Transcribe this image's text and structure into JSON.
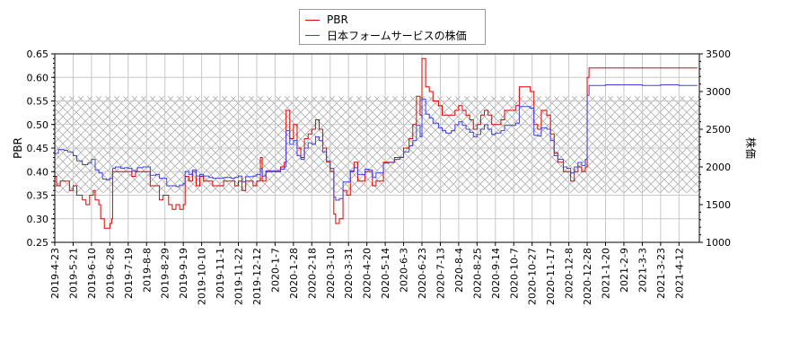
{
  "chart_data": {
    "type": "line",
    "title": "",
    "xlabel": "",
    "ylabel": "PBR",
    "ylabel_right": "株価",
    "ylim": [
      0.25,
      0.65
    ],
    "ylim_right": [
      1000,
      3500
    ],
    "yticks": [
      "0.25",
      "0.30",
      "0.35",
      "0.40",
      "0.45",
      "0.50",
      "0.55",
      "0.60",
      "0.65"
    ],
    "yticks_right": [
      "1000",
      "1500",
      "2000",
      "2500",
      "3000",
      "3500"
    ],
    "x_tick_labels": [
      "2019-4-23",
      "2019-5-21",
      "2019-6-10",
      "2019-6-28",
      "2019-7-19",
      "2019-8-8",
      "2019-8-29",
      "2019-9-19",
      "2019-10-10",
      "2019-11-1",
      "2019-11-22",
      "2019-12-12",
      "2020-1-7",
      "2020-1-28",
      "2020-2-18",
      "2020-3-10",
      "2020-3-31",
      "2020-4-20",
      "2020-5-14",
      "2020-6-3",
      "2020-6-23",
      "2020-7-13",
      "2020-8-4",
      "2020-8-25",
      "2020-9-14",
      "2020-10-7",
      "2020-10-27",
      "2020-11-17",
      "2020-12-8",
      "2020-12-28",
      "2021-1-20",
      "2021-2-9",
      "2021-3-3",
      "2021-3-23",
      "2021-4-12"
    ],
    "grid": true,
    "hatched_band_pbr": [
      0.355,
      0.56
    ],
    "legend_position": "top-center",
    "series": [
      {
        "name": "PBR",
        "color": "#e00000",
        "axis": "left",
        "points": [
          [
            0,
            0.39
          ],
          [
            0.1,
            0.37
          ],
          [
            0.3,
            0.38
          ],
          [
            0.6,
            0.38
          ],
          [
            0.8,
            0.36
          ],
          [
            1.0,
            0.37
          ],
          [
            1.2,
            0.35
          ],
          [
            1.5,
            0.34
          ],
          [
            1.7,
            0.33
          ],
          [
            1.9,
            0.35
          ],
          [
            2.1,
            0.36
          ],
          [
            2.2,
            0.34
          ],
          [
            2.4,
            0.33
          ],
          [
            2.5,
            0.3
          ],
          [
            2.7,
            0.28
          ],
          [
            2.9,
            0.28
          ],
          [
            3.0,
            0.29
          ],
          [
            3.1,
            0.3
          ],
          [
            3.15,
            0.4
          ],
          [
            3.3,
            0.4
          ],
          [
            3.5,
            0.4
          ],
          [
            3.8,
            0.4
          ],
          [
            4.0,
            0.4
          ],
          [
            4.2,
            0.39
          ],
          [
            4.4,
            0.4
          ],
          [
            4.8,
            0.4
          ],
          [
            5.0,
            0.4
          ],
          [
            5.2,
            0.37
          ],
          [
            5.5,
            0.37
          ],
          [
            5.7,
            0.34
          ],
          [
            5.9,
            0.35
          ],
          [
            6.2,
            0.33
          ],
          [
            6.4,
            0.32
          ],
          [
            6.6,
            0.33
          ],
          [
            6.8,
            0.32
          ],
          [
            7.0,
            0.33
          ],
          [
            7.1,
            0.39
          ],
          [
            7.3,
            0.38
          ],
          [
            7.5,
            0.4
          ],
          [
            7.7,
            0.37
          ],
          [
            7.9,
            0.39
          ],
          [
            8.1,
            0.38
          ],
          [
            8.4,
            0.38
          ],
          [
            8.6,
            0.37
          ],
          [
            9.0,
            0.37
          ],
          [
            9.2,
            0.38
          ],
          [
            9.6,
            0.38
          ],
          [
            9.8,
            0.37
          ],
          [
            10.0,
            0.38
          ],
          [
            10.2,
            0.36
          ],
          [
            10.4,
            0.38
          ],
          [
            10.6,
            0.38
          ],
          [
            10.8,
            0.37
          ],
          [
            11.0,
            0.38
          ],
          [
            11.2,
            0.43
          ],
          [
            11.3,
            0.38
          ],
          [
            11.5,
            0.4
          ],
          [
            11.8,
            0.4
          ],
          [
            12.0,
            0.4
          ],
          [
            12.3,
            0.41
          ],
          [
            12.5,
            0.42
          ],
          [
            12.6,
            0.53
          ],
          [
            12.8,
            0.47
          ],
          [
            13.0,
            0.5
          ],
          [
            13.2,
            0.45
          ],
          [
            13.4,
            0.43
          ],
          [
            13.6,
            0.47
          ],
          [
            13.8,
            0.48
          ],
          [
            14.0,
            0.49
          ],
          [
            14.2,
            0.51
          ],
          [
            14.4,
            0.49
          ],
          [
            14.6,
            0.45
          ],
          [
            14.8,
            0.42
          ],
          [
            15.0,
            0.4
          ],
          [
            15.2,
            0.31
          ],
          [
            15.3,
            0.29
          ],
          [
            15.5,
            0.3
          ],
          [
            15.7,
            0.36
          ],
          [
            15.9,
            0.35
          ],
          [
            16.1,
            0.4
          ],
          [
            16.3,
            0.42
          ],
          [
            16.5,
            0.38
          ],
          [
            16.7,
            0.38
          ],
          [
            16.9,
            0.4
          ],
          [
            17.1,
            0.4
          ],
          [
            17.3,
            0.37
          ],
          [
            17.5,
            0.38
          ],
          [
            17.7,
            0.38
          ],
          [
            17.9,
            0.42
          ],
          [
            18.2,
            0.42
          ],
          [
            18.5,
            0.43
          ],
          [
            18.8,
            0.43
          ],
          [
            19.0,
            0.45
          ],
          [
            19.3,
            0.47
          ],
          [
            19.5,
            0.5
          ],
          [
            19.7,
            0.56
          ],
          [
            19.9,
            0.52
          ],
          [
            20.0,
            0.64
          ],
          [
            20.2,
            0.58
          ],
          [
            20.4,
            0.57
          ],
          [
            20.6,
            0.55
          ],
          [
            20.9,
            0.54
          ],
          [
            21.1,
            0.52
          ],
          [
            21.3,
            0.52
          ],
          [
            21.6,
            0.52
          ],
          [
            21.8,
            0.53
          ],
          [
            22.0,
            0.54
          ],
          [
            22.2,
            0.53
          ],
          [
            22.4,
            0.52
          ],
          [
            22.6,
            0.51
          ],
          [
            22.8,
            0.49
          ],
          [
            23.0,
            0.5
          ],
          [
            23.2,
            0.52
          ],
          [
            23.4,
            0.53
          ],
          [
            23.6,
            0.52
          ],
          [
            23.8,
            0.5
          ],
          [
            24.0,
            0.5
          ],
          [
            24.3,
            0.51
          ],
          [
            24.5,
            0.53
          ],
          [
            24.8,
            0.53
          ],
          [
            25.1,
            0.54
          ],
          [
            25.3,
            0.58
          ],
          [
            25.6,
            0.58
          ],
          [
            25.9,
            0.57
          ],
          [
            26.1,
            0.5
          ],
          [
            26.3,
            0.49
          ],
          [
            26.5,
            0.53
          ],
          [
            26.8,
            0.52
          ],
          [
            27.0,
            0.48
          ],
          [
            27.2,
            0.44
          ],
          [
            27.4,
            0.42
          ],
          [
            27.7,
            0.4
          ],
          [
            27.9,
            0.4
          ],
          [
            28.1,
            0.38
          ],
          [
            28.3,
            0.4
          ],
          [
            28.5,
            0.41
          ],
          [
            28.7,
            0.4
          ],
          [
            28.9,
            0.41
          ],
          [
            29.0,
            0.6
          ],
          [
            29.1,
            0.62
          ],
          [
            30.0,
            0.62
          ],
          [
            31.0,
            0.62
          ],
          [
            32.0,
            0.62
          ],
          [
            33.0,
            0.62
          ],
          [
            34.0,
            0.62
          ],
          [
            35.0,
            0.62
          ]
        ]
      },
      {
        "name": "日本フォームサービスの株価",
        "color": "#4040e0",
        "axis": "right",
        "points": [
          [
            0,
            2180
          ],
          [
            0.2,
            2230
          ],
          [
            0.5,
            2220
          ],
          [
            0.7,
            2200
          ],
          [
            1.0,
            2150
          ],
          [
            1.2,
            2080
          ],
          [
            1.5,
            2030
          ],
          [
            1.8,
            2050
          ],
          [
            2.0,
            2100
          ],
          [
            2.2,
            1960
          ],
          [
            2.4,
            1920
          ],
          [
            2.6,
            1840
          ],
          [
            2.8,
            1830
          ],
          [
            3.0,
            1850
          ],
          [
            3.15,
            1980
          ],
          [
            3.3,
            2000
          ],
          [
            3.6,
            1980
          ],
          [
            3.8,
            1990
          ],
          [
            4.0,
            1980
          ],
          [
            4.2,
            1950
          ],
          [
            4.5,
            1990
          ],
          [
            4.8,
            2000
          ],
          [
            5.0,
            2000
          ],
          [
            5.2,
            1890
          ],
          [
            5.5,
            1900
          ],
          [
            5.7,
            1850
          ],
          [
            5.9,
            1850
          ],
          [
            6.1,
            1750
          ],
          [
            6.3,
            1750
          ],
          [
            6.6,
            1740
          ],
          [
            6.8,
            1760
          ],
          [
            7.0,
            1780
          ],
          [
            7.1,
            1940
          ],
          [
            7.3,
            1900
          ],
          [
            7.5,
            1960
          ],
          [
            7.7,
            1880
          ],
          [
            7.9,
            1900
          ],
          [
            8.1,
            1880
          ],
          [
            8.4,
            1860
          ],
          [
            8.6,
            1850
          ],
          [
            9.0,
            1850
          ],
          [
            9.2,
            1860
          ],
          [
            9.6,
            1850
          ],
          [
            9.8,
            1860
          ],
          [
            10.0,
            1880
          ],
          [
            10.2,
            1800
          ],
          [
            10.4,
            1870
          ],
          [
            10.6,
            1870
          ],
          [
            10.8,
            1880
          ],
          [
            11.0,
            1900
          ],
          [
            11.2,
            1980
          ],
          [
            11.3,
            1880
          ],
          [
            11.5,
            1950
          ],
          [
            11.8,
            1950
          ],
          [
            12.0,
            1950
          ],
          [
            12.3,
            1970
          ],
          [
            12.5,
            2000
          ],
          [
            12.6,
            2480
          ],
          [
            12.8,
            2300
          ],
          [
            13.0,
            2350
          ],
          [
            13.2,
            2150
          ],
          [
            13.4,
            2100
          ],
          [
            13.6,
            2250
          ],
          [
            13.8,
            2320
          ],
          [
            14.0,
            2300
          ],
          [
            14.2,
            2400
          ],
          [
            14.4,
            2350
          ],
          [
            14.6,
            2200
          ],
          [
            14.8,
            2080
          ],
          [
            15.0,
            1980
          ],
          [
            15.2,
            1600
          ],
          [
            15.3,
            1560
          ],
          [
            15.5,
            1580
          ],
          [
            15.7,
            1800
          ],
          [
            15.9,
            1800
          ],
          [
            16.1,
            1950
          ],
          [
            16.3,
            1990
          ],
          [
            16.5,
            1900
          ],
          [
            16.7,
            1900
          ],
          [
            16.9,
            1970
          ],
          [
            17.1,
            1960
          ],
          [
            17.3,
            1860
          ],
          [
            17.5,
            1920
          ],
          [
            17.7,
            1920
          ],
          [
            17.9,
            2050
          ],
          [
            18.2,
            2060
          ],
          [
            18.5,
            2100
          ],
          [
            18.8,
            2130
          ],
          [
            19.0,
            2200
          ],
          [
            19.3,
            2280
          ],
          [
            19.5,
            2350
          ],
          [
            19.7,
            2550
          ],
          [
            19.9,
            2400
          ],
          [
            20.0,
            2900
          ],
          [
            20.2,
            2700
          ],
          [
            20.4,
            2650
          ],
          [
            20.6,
            2580
          ],
          [
            20.9,
            2520
          ],
          [
            21.1,
            2480
          ],
          [
            21.3,
            2450
          ],
          [
            21.6,
            2480
          ],
          [
            21.8,
            2560
          ],
          [
            22.0,
            2600
          ],
          [
            22.2,
            2550
          ],
          [
            22.4,
            2500
          ],
          [
            22.6,
            2460
          ],
          [
            22.8,
            2400
          ],
          [
            23.0,
            2430
          ],
          [
            23.2,
            2500
          ],
          [
            23.4,
            2560
          ],
          [
            23.6,
            2500
          ],
          [
            23.8,
            2430
          ],
          [
            24.0,
            2450
          ],
          [
            24.3,
            2480
          ],
          [
            24.5,
            2550
          ],
          [
            24.8,
            2550
          ],
          [
            25.1,
            2580
          ],
          [
            25.3,
            2800
          ],
          [
            25.6,
            2800
          ],
          [
            25.9,
            2780
          ],
          [
            26.1,
            2420
          ],
          [
            26.3,
            2410
          ],
          [
            26.5,
            2520
          ],
          [
            26.8,
            2500
          ],
          [
            27.0,
            2350
          ],
          [
            27.2,
            2150
          ],
          [
            27.4,
            2100
          ],
          [
            27.7,
            2000
          ],
          [
            27.9,
            1980
          ],
          [
            28.1,
            1920
          ],
          [
            28.3,
            2000
          ],
          [
            28.5,
            2060
          ],
          [
            28.7,
            2020
          ],
          [
            28.9,
            2100
          ],
          [
            29.0,
            2950
          ],
          [
            29.1,
            3080
          ],
          [
            30.0,
            3090
          ],
          [
            31.0,
            3090
          ],
          [
            32.0,
            3080
          ],
          [
            33.0,
            3090
          ],
          [
            34.0,
            3080
          ],
          [
            35.0,
            3080
          ]
        ]
      }
    ]
  },
  "legend": {
    "items": [
      {
        "label": "PBR",
        "color": "#e00000"
      },
      {
        "label": "日本フォームサービスの株価",
        "color": "#4040e0"
      }
    ]
  }
}
